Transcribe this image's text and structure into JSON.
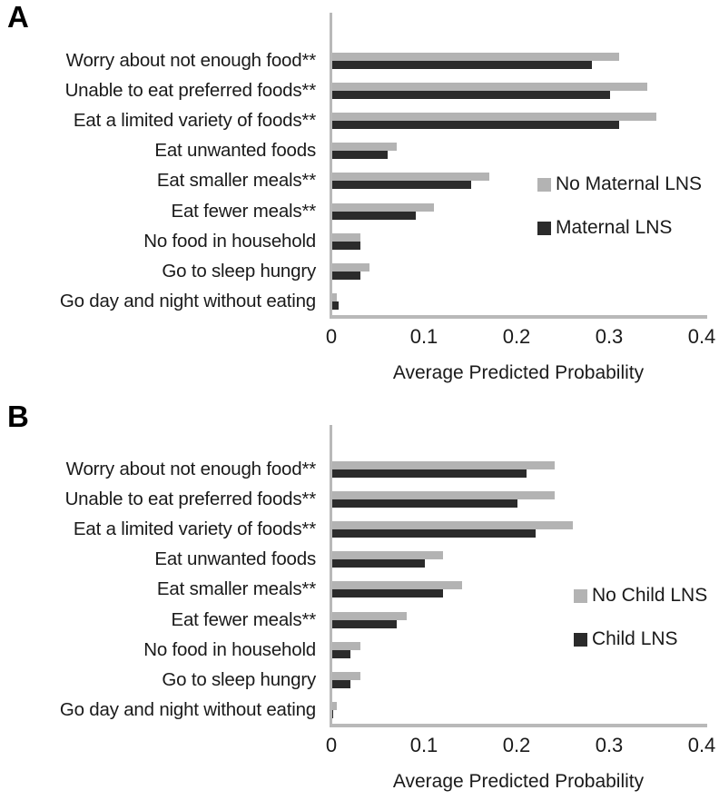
{
  "figure_title": "",
  "colors": {
    "bar_light": "#b3b3b3",
    "bar_dark": "#2b2b2b",
    "axis_line": "#b9b9b9",
    "text": "#1a1a1a",
    "background": "#ffffff"
  },
  "chart_data": [
    {
      "type": "bar",
      "orientation": "horizontal",
      "panel_label": "A",
      "title": "",
      "xlabel": "Average Predicted Probability",
      "ylabel": "",
      "xlim": [
        0,
        0.4
      ],
      "xticks": [
        0,
        0.1,
        0.2,
        0.3,
        0.4
      ],
      "xtick_labels": [
        "0",
        "0.1",
        "0.2",
        "0.3",
        "0.4"
      ],
      "grid": false,
      "legend_position": "right-middle",
      "categories": [
        "Worry about not enough food**",
        "Unable to eat preferred foods**",
        "Eat a limited variety of foods**",
        "Eat unwanted foods",
        "Eat smaller meals**",
        "Eat fewer meals**",
        "No food in household",
        "Go to sleep hungry",
        "Go day and night without eating"
      ],
      "series": [
        {
          "name": "No Maternal LNS",
          "color": "#b3b3b3",
          "values": [
            0.31,
            0.34,
            0.35,
            0.07,
            0.17,
            0.11,
            0.03,
            0.04,
            0.005
          ]
        },
        {
          "name": "Maternal LNS",
          "color": "#2b2b2b",
          "values": [
            0.28,
            0.3,
            0.31,
            0.06,
            0.15,
            0.09,
            0.03,
            0.03,
            0.007
          ]
        }
      ]
    },
    {
      "type": "bar",
      "orientation": "horizontal",
      "panel_label": "B",
      "title": "",
      "xlabel": "Average Predicted Probability",
      "ylabel": "",
      "xlim": [
        0,
        0.4
      ],
      "xticks": [
        0,
        0.1,
        0.2,
        0.3,
        0.4
      ],
      "xtick_labels": [
        "0",
        "0.1",
        "0.2",
        "0.3",
        "0.4"
      ],
      "grid": false,
      "legend_position": "right-middle",
      "categories": [
        "Worry about not enough food**",
        "Unable to eat preferred foods**",
        "Eat a limited variety of foods**",
        "Eat unwanted foods",
        "Eat smaller meals**",
        "Eat fewer meals**",
        "No food in household",
        "Go to sleep hungry",
        "Go day and night without eating"
      ],
      "series": [
        {
          "name": "No Child LNS",
          "color": "#b3b3b3",
          "values": [
            0.24,
            0.24,
            0.26,
            0.12,
            0.14,
            0.08,
            0.03,
            0.03,
            0.005
          ]
        },
        {
          "name": "Child LNS",
          "color": "#2b2b2b",
          "values": [
            0.21,
            0.2,
            0.22,
            0.1,
            0.12,
            0.07,
            0.02,
            0.02,
            0.001
          ]
        }
      ]
    }
  ]
}
